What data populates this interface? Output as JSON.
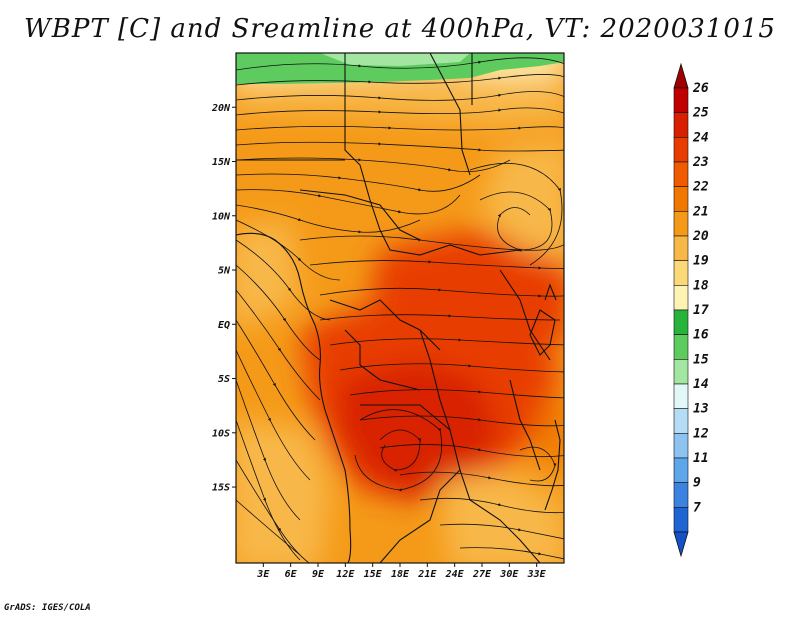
{
  "title": "WBPT [C] and Sreamline at 400hPa, VT: 2020031015",
  "credit": "GrADS: IGES/COLA",
  "map": {
    "lon_range": [
      0,
      36
    ],
    "lat_range": [
      -22,
      25
    ],
    "lon_ticks": [
      "3E",
      "6E",
      "9E",
      "12E",
      "15E",
      "18E",
      "21E",
      "24E",
      "27E",
      "30E",
      "33E"
    ],
    "lon_tick_values": [
      3,
      6,
      9,
      12,
      15,
      18,
      21,
      24,
      27,
      30,
      33
    ],
    "lat_ticks": [
      "20N",
      "15N",
      "10N",
      "5N",
      "EQ",
      "5S",
      "10S",
      "15S"
    ],
    "lat_tick_values": [
      20,
      15,
      10,
      5,
      0,
      -5,
      -10,
      -15
    ]
  },
  "colorbar": {
    "labels": [
      "26",
      "25",
      "24",
      "23",
      "22",
      "21",
      "20",
      "19",
      "18",
      "17",
      "16",
      "15",
      "14",
      "13",
      "12",
      "11",
      "9",
      "7"
    ],
    "colors": [
      "#c00000",
      "#d82000",
      "#e83c00",
      "#f05a00",
      "#f07800",
      "#f59a18",
      "#f8b848",
      "#fbd878",
      "#fdf3b4",
      "#28b43c",
      "#5ecb5e",
      "#a2e6a2",
      "#e2f7f7",
      "#b4dcf5",
      "#8cc3f0",
      "#5ea6ea",
      "#3c82e0",
      "#1e64d2"
    ],
    "top_arrow_color": "#a00000",
    "bottom_arrow_color": "#1450c8"
  }
}
